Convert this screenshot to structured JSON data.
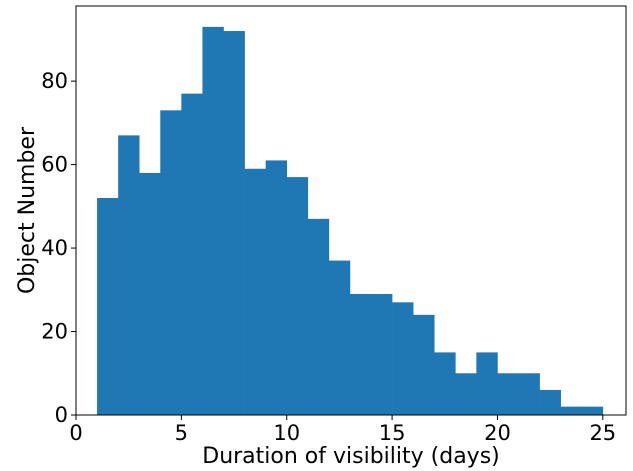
{
  "chart_data": {
    "type": "bar",
    "style": "histogram",
    "bar_color": "#1f77b4",
    "xlabel": "Duration of visibility (days)",
    "ylabel": "Object Number",
    "xlim": [
      0,
      26.1
    ],
    "ylim": [
      0,
      98
    ],
    "xticks": [
      0,
      5,
      10,
      15,
      20,
      25
    ],
    "yticks": [
      0,
      20,
      40,
      60,
      80
    ],
    "bin_edges": [
      1.0,
      2.0,
      3.0,
      4.0,
      5.0,
      6.0,
      7.0,
      8.0,
      9.0,
      10.0,
      11.0,
      12.0,
      13.0,
      14.0,
      15.0,
      16.0,
      17.0,
      18.0,
      19.0,
      20.0,
      21.0,
      22.0,
      23.0,
      24.0,
      25.0
    ],
    "values": [
      52,
      67,
      58,
      73,
      77,
      93,
      92,
      59,
      61,
      57,
      47,
      37,
      29,
      29,
      27,
      24,
      15,
      10,
      15,
      10,
      10,
      6,
      2,
      2
    ],
    "grid": false
  }
}
